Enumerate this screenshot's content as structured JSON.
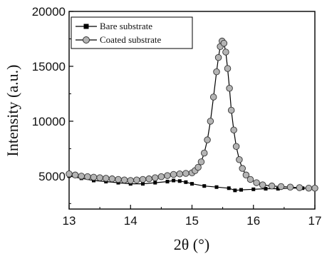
{
  "chart_data": {
    "type": "scatter",
    "xlabel": "2θ (°)",
    "ylabel": "Intensity (a.u.)",
    "xlim": [
      13,
      17
    ],
    "ylim": [
      2000,
      20000
    ],
    "x_ticks": [
      "13",
      "14",
      "15",
      "16",
      "17"
    ],
    "y_ticks": [
      "5000",
      "10000",
      "15000",
      "20000"
    ],
    "grid": false,
    "legend_position": "top-left",
    "series": [
      {
        "name": "Bare substrate",
        "marker": "square",
        "color": "#000000",
        "x": [
          13.0,
          13.2,
          13.4,
          13.6,
          13.8,
          14.0,
          14.2,
          14.4,
          14.6,
          14.7,
          14.8,
          14.9,
          15.0,
          15.2,
          15.4,
          15.6,
          15.7,
          15.8,
          16.0,
          16.2,
          16.4,
          16.6,
          16.8,
          17.0
        ],
        "y": [
          5000,
          4800,
          4600,
          4500,
          4400,
          4300,
          4300,
          4400,
          4500,
          4600,
          4550,
          4450,
          4300,
          4100,
          4000,
          3900,
          3700,
          3750,
          3800,
          3850,
          3850,
          3900,
          3900,
          3900
        ]
      },
      {
        "name": "Coated substrate",
        "marker": "circle",
        "color": "#b4b4b4",
        "x": [
          13.0,
          13.1,
          13.2,
          13.3,
          13.4,
          13.5,
          13.6,
          13.7,
          13.8,
          13.9,
          14.0,
          14.1,
          14.2,
          14.3,
          14.4,
          14.5,
          14.6,
          14.7,
          14.8,
          14.9,
          15.0,
          15.05,
          15.1,
          15.15,
          15.2,
          15.25,
          15.3,
          15.35,
          15.4,
          15.43,
          15.46,
          15.49,
          15.52,
          15.55,
          15.58,
          15.61,
          15.64,
          15.68,
          15.72,
          15.77,
          15.82,
          15.88,
          15.95,
          16.05,
          16.15,
          16.3,
          16.45,
          16.6,
          16.75,
          16.9,
          17.0
        ],
        "y": [
          5200,
          5100,
          5000,
          4950,
          4900,
          4850,
          4800,
          4750,
          4700,
          4650,
          4600,
          4650,
          4700,
          4750,
          4850,
          4950,
          5050,
          5150,
          5200,
          5250,
          5300,
          5500,
          5800,
          6300,
          7100,
          8300,
          10000,
          12200,
          14500,
          15800,
          16800,
          17300,
          17100,
          16300,
          14800,
          13000,
          11000,
          9200,
          7700,
          6500,
          5700,
          5100,
          4700,
          4400,
          4200,
          4100,
          4050,
          4000,
          3950,
          3900,
          3900
        ]
      }
    ]
  }
}
